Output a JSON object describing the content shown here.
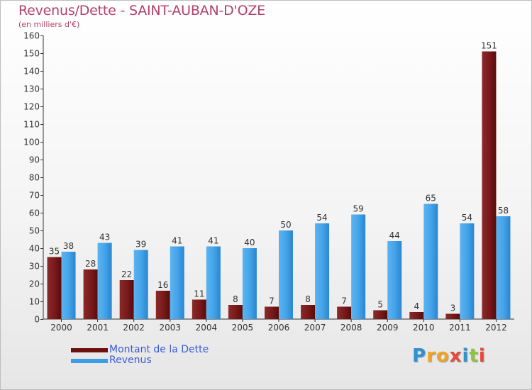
{
  "title": "Revenus/Dette - SAINT-AUBAN-D'OZE",
  "subtitle": "(en milliers d'€)",
  "logo": {
    "letters": [
      {
        "ch": "P",
        "color": "#2f93cf"
      },
      {
        "ch": "r",
        "color": "#f0a323"
      },
      {
        "ch": "o",
        "color": "#f0a323"
      },
      {
        "ch": "x",
        "color": "#e9473b"
      },
      {
        "ch": "i",
        "color": "#2f93cf"
      },
      {
        "ch": "t",
        "color": "#8cc63f"
      },
      {
        "ch": "i",
        "color": "#e9473b"
      }
    ]
  },
  "chart_data": {
    "type": "bar",
    "title": "Revenus/Dette - SAINT-AUBAN-D'OZE",
    "subtitle": "(en milliers d'€)",
    "xlabel": "",
    "ylabel": "",
    "categories": [
      "2000",
      "2001",
      "2002",
      "2003",
      "2004",
      "2005",
      "2006",
      "2007",
      "2008",
      "2009",
      "2010",
      "2011",
      "2012"
    ],
    "series": [
      {
        "name": "Montant de la Dette",
        "color": "#7a1818",
        "values": [
          35,
          28,
          22,
          16,
          11,
          8,
          7,
          8,
          7,
          5,
          4,
          3,
          151
        ]
      },
      {
        "name": "Revenus",
        "color": "#3d9ee6",
        "values": [
          38,
          43,
          39,
          41,
          41,
          40,
          50,
          54,
          59,
          44,
          65,
          54,
          58
        ]
      }
    ],
    "ylim": [
      0,
      160
    ],
    "yticks": [
      0,
      10,
      20,
      30,
      40,
      50,
      60,
      70,
      80,
      90,
      100,
      110,
      120,
      130,
      140,
      150,
      160
    ],
    "grid": false,
    "legend": "bottom-left"
  }
}
